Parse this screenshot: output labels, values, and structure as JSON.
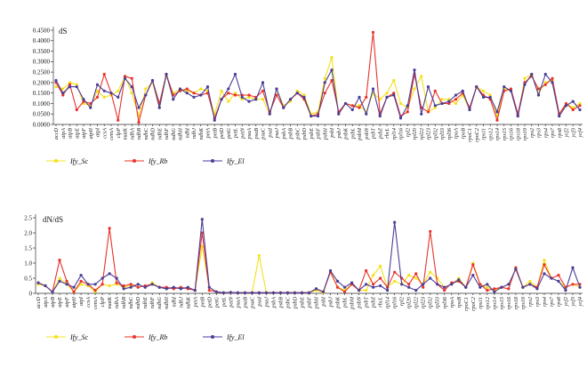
{
  "chart_data": [
    {
      "type": "line",
      "title": "",
      "ylabel": "dS",
      "xlabel": "",
      "ylim": [
        0,
        0.45
      ],
      "yticks": [
        "0.0000",
        "0.0500",
        "0.1000",
        "0.1500",
        "0.2000",
        "0.2500",
        "0.3000",
        "0.3500",
        "0.4000",
        "0.4500"
      ],
      "ytick_values": [
        0,
        0.05,
        0.1,
        0.15,
        0.2,
        0.25,
        0.3,
        0.35,
        0.4,
        0.45
      ],
      "legend_position": "bottom-left",
      "categories": [
        "accD",
        "atpA",
        "atpB",
        "atpE",
        "atpF",
        "atpH",
        "atpI",
        "ccsA",
        "cemA",
        "clpP",
        "matK",
        "ndhA",
        "ndhB",
        "ndhC",
        "ndhD",
        "ndhE",
        "ndhF",
        "ndhG",
        "ndhH",
        "ndhI",
        "ndhJ",
        "ndhK",
        "petA",
        "petB",
        "petD",
        "petG",
        "petL",
        "petN",
        "psaA",
        "psaB",
        "psaC",
        "psaI",
        "psaJ",
        "psbA",
        "psbB",
        "psbC",
        "psbD",
        "psbE",
        "psbF",
        "psbH",
        "psbI",
        "psbJ",
        "psbK",
        "psbL",
        "psbM",
        "psbN",
        "psbT",
        "psbZ",
        "rbcL",
        "rpl14",
        "rpl16",
        "rpl2",
        "rpl20",
        "rpl22",
        "rpl23",
        "rpl32",
        "rpl33",
        "rpl36",
        "rpoA",
        "rpoB",
        "rpoC1",
        "rpoC2",
        "rps11",
        "rps12",
        "rps14",
        "rps15",
        "rps16",
        "rps18",
        "rps19",
        "rps2",
        "rps3",
        "rps4",
        "rps7",
        "rps8",
        "ycf2",
        "ycf3",
        "ycf4"
      ],
      "series": [
        {
          "name": "Ify_Sc",
          "color": "#f5e01a",
          "values": [
            0.18,
            0.17,
            0.2,
            0.19,
            0.1,
            0.09,
            0.16,
            0.13,
            0.14,
            0.16,
            0.23,
            0.15,
            0.04,
            0.17,
            0.2,
            0.08,
            0.23,
            0.15,
            0.17,
            0.16,
            0.15,
            0.17,
            0.16,
            0.05,
            0.16,
            0.11,
            0.15,
            0.12,
            0.13,
            0.12,
            0.12,
            0.05,
            0.17,
            0.09,
            0.11,
            0.16,
            0.14,
            0.05,
            0.06,
            0.22,
            0.32,
            0.05,
            0.1,
            0.09,
            0.09,
            0.06,
            0.15,
            0.12,
            0.15,
            0.21,
            0.1,
            0.08,
            0.17,
            0.23,
            0.06,
            0.08,
            0.12,
            0.12,
            0.1,
            0.14,
            0.07,
            0.18,
            0.16,
            0.14,
            0.04,
            0.17,
            0.16,
            0.04,
            0.22,
            0.24,
            0.15,
            0.2,
            0.21,
            0.04,
            0.1,
            0.08,
            0.1
          ]
        },
        {
          "name": "Ify_Rb",
          "color": "#e8322b",
          "values": [
            0.2,
            0.14,
            0.19,
            0.07,
            0.11,
            0.1,
            0.13,
            0.24,
            0.15,
            0.02,
            0.23,
            0.22,
            0.01,
            0.14,
            0.21,
            0.1,
            0.24,
            0.14,
            0.16,
            0.17,
            0.15,
            0.14,
            0.15,
            0.03,
            0.12,
            0.15,
            0.14,
            0.14,
            0.14,
            0.13,
            0.16,
            0.06,
            0.14,
            0.08,
            0.12,
            0.15,
            0.12,
            0.04,
            0.05,
            0.15,
            0.21,
            0.06,
            0.1,
            0.09,
            0.08,
            0.13,
            0.44,
            0.05,
            0.13,
            0.15,
            0.04,
            0.06,
            0.24,
            0.08,
            0.06,
            0.16,
            0.1,
            0.1,
            0.12,
            0.15,
            0.08,
            0.18,
            0.14,
            0.12,
            0.02,
            0.16,
            0.17,
            0.05,
            0.2,
            0.23,
            0.17,
            0.19,
            0.22,
            0.05,
            0.1,
            0.07,
            0.09
          ]
        },
        {
          "name": "Ify_El",
          "color": "#4a3d99",
          "values": [
            0.21,
            0.15,
            0.18,
            0.18,
            0.12,
            0.08,
            0.19,
            0.16,
            0.15,
            0.13,
            0.22,
            0.18,
            0.08,
            0.14,
            0.21,
            0.08,
            0.24,
            0.12,
            0.17,
            0.15,
            0.13,
            0.14,
            0.18,
            0.02,
            0.12,
            0.17,
            0.24,
            0.13,
            0.11,
            0.12,
            0.2,
            0.05,
            0.17,
            0.08,
            0.12,
            0.15,
            0.13,
            0.04,
            0.04,
            0.2,
            0.26,
            0.05,
            0.1,
            0.07,
            0.13,
            0.05,
            0.17,
            0.04,
            0.13,
            0.14,
            0.03,
            0.09,
            0.26,
            0.05,
            0.18,
            0.09,
            0.1,
            0.11,
            0.14,
            0.16,
            0.07,
            0.18,
            0.13,
            0.13,
            0.06,
            0.18,
            0.16,
            0.04,
            0.19,
            0.24,
            0.14,
            0.24,
            0.2,
            0.04,
            0.09,
            0.11,
            0.07
          ]
        }
      ]
    },
    {
      "type": "line",
      "title": "",
      "ylabel": "dN/dS",
      "xlabel": "",
      "ylim": [
        0,
        2.5
      ],
      "yticks": [
        "0",
        "0.5",
        "1.0",
        "1.5",
        "2.0",
        "2.5"
      ],
      "ytick_values": [
        0,
        0.5,
        1.0,
        1.5,
        2.0,
        2.5
      ],
      "legend_position": "bottom-left",
      "categories": [
        "accD",
        "atpA",
        "atpB",
        "atpE",
        "atpF",
        "atpH",
        "atpI",
        "ccsA",
        "cemA",
        "clpP",
        "matK",
        "ndhA",
        "ndhB",
        "ndhC",
        "ndhD",
        "ndhE",
        "ndhF",
        "ndhG",
        "ndhH",
        "ndhI",
        "ndhJ",
        "ndhK",
        "petA",
        "petB",
        "petD",
        "petG",
        "petL",
        "petN",
        "psaA",
        "psaB",
        "psaC",
        "psaI",
        "psaJ",
        "psbA",
        "psbB",
        "psbC",
        "psbD",
        "psbE",
        "psbF",
        "psbH",
        "psbI",
        "psbJ",
        "psbK",
        "psbL",
        "psbM",
        "psbN",
        "psbT",
        "psbZ",
        "rbcL",
        "rpl14",
        "rpl16",
        "rpl2",
        "rpl20",
        "rpl22",
        "rpl23",
        "rpl32",
        "rpl33",
        "rpl36",
        "rpoA",
        "rpoB",
        "rpoC1",
        "rpoC2",
        "rps11",
        "rps12",
        "rps14",
        "rps15",
        "rps16",
        "rps18",
        "rps19",
        "rps2",
        "rps3",
        "rps4",
        "rps7",
        "rps8",
        "ycf2",
        "ycf3",
        "ycf4"
      ],
      "series": [
        {
          "name": "Ify_Sc",
          "color": "#f5e01a",
          "values": [
            0.3,
            0.25,
            0.05,
            0.5,
            0.3,
            0.05,
            0.3,
            0.25,
            0.05,
            0.3,
            0.25,
            0.3,
            0.2,
            0.25,
            0.3,
            0.2,
            0.35,
            0.2,
            0.15,
            0.2,
            0.15,
            0.2,
            0.1,
            1.55,
            0.2,
            0.05,
            0.02,
            0.03,
            0.02,
            0.02,
            0.02,
            1.25,
            0.02,
            0.02,
            0.02,
            0.02,
            0.02,
            0.02,
            0.02,
            0.1,
            0.02,
            0.75,
            0.2,
            0.1,
            0.3,
            0.1,
            0.1,
            0.6,
            0.9,
            0.2,
            0.4,
            0.3,
            0.6,
            0.5,
            0.3,
            0.7,
            0.5,
            0.2,
            0.3,
            0.5,
            0.2,
            1.0,
            0.3,
            0.2,
            0.1,
            0.2,
            0.3,
            0.8,
            0.2,
            0.4,
            0.2,
            1.1,
            0.5,
            0.4,
            0.2,
            0.3,
            0.2
          ]
        },
        {
          "name": "Ify_Rb",
          "color": "#e8322b",
          "values": [
            0.35,
            0.25,
            0.05,
            1.1,
            0.4,
            0.05,
            0.4,
            0.3,
            0.1,
            0.3,
            2.15,
            0.35,
            0.25,
            0.3,
            0.2,
            0.25,
            0.3,
            0.2,
            0.2,
            0.15,
            0.2,
            0.15,
            0.1,
            2.0,
            0.1,
            0.05,
            0.02,
            0.03,
            0.02,
            0.02,
            0.02,
            0.02,
            0.02,
            0.02,
            0.02,
            0.02,
            0.02,
            0.02,
            0.02,
            0.15,
            0.05,
            0.7,
            0.2,
            0.05,
            0.3,
            0.1,
            0.75,
            0.3,
            0.5,
            0.2,
            0.7,
            0.5,
            0.3,
            0.65,
            0.2,
            2.05,
            0.3,
            0.1,
            0.35,
            0.4,
            0.2,
            0.95,
            0.3,
            0.1,
            0.15,
            0.2,
            0.15,
            0.85,
            0.2,
            0.3,
            0.2,
            0.95,
            0.5,
            0.6,
            0.2,
            0.3,
            0.3
          ]
        },
        {
          "name": "Ify_El",
          "color": "#4a3d99",
          "values": [
            0.35,
            0.25,
            0.05,
            0.4,
            0.3,
            0.2,
            0.6,
            0.3,
            0.3,
            0.5,
            0.65,
            0.5,
            0.15,
            0.2,
            0.3,
            0.2,
            0.3,
            0.2,
            0.15,
            0.2,
            0.15,
            0.2,
            0.1,
            2.45,
            0.2,
            0.05,
            0.02,
            0.03,
            0.02,
            0.02,
            0.02,
            0.02,
            0.02,
            0.02,
            0.02,
            0.02,
            0.02,
            0.02,
            0.02,
            0.15,
            0.05,
            0.75,
            0.4,
            0.2,
            0.35,
            0.1,
            0.3,
            0.2,
            0.25,
            0.1,
            2.35,
            0.3,
            0.2,
            0.1,
            0.3,
            0.5,
            0.3,
            0.2,
            0.3,
            0.45,
            0.2,
            0.6,
            0.2,
            0.3,
            0.05,
            0.2,
            0.3,
            0.8,
            0.2,
            0.3,
            0.15,
            0.65,
            0.5,
            0.4,
            0.1,
            0.85,
            0.2
          ]
        }
      ]
    }
  ]
}
